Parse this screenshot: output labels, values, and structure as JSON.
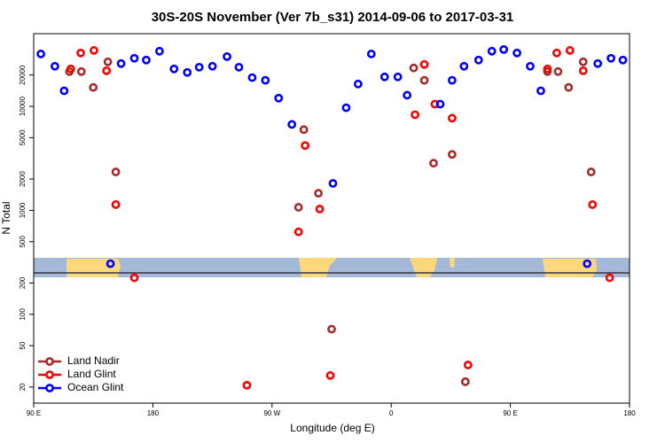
{
  "chart_data": {
    "type": "scatter",
    "title": "30S-20S November (Ver 7b_s31)   2014-09-06 to 2017-03-31",
    "xlabel": "Longitude (deg E)",
    "ylabel": "N Total",
    "log_y": true,
    "legend": "lower left",
    "xlim": [
      90,
      540
    ],
    "xticks": [
      {
        "value": 90,
        "label": "90 E"
      },
      {
        "value": 180,
        "label": "180"
      },
      {
        "value": 270,
        "label": "90 W"
      },
      {
        "value": 360,
        "label": "0"
      },
      {
        "value": 450,
        "label": "90 E"
      },
      {
        "value": 540,
        "label": "180"
      }
    ],
    "ylim": [
      14,
      50000
    ],
    "yticks": [
      20,
      50,
      100,
      200,
      500,
      1000,
      2000,
      5000,
      10000,
      20000
    ],
    "series": [
      {
        "name": "Land Nadir",
        "color": "#a52a2a",
        "x": [
          117,
          126,
          135,
          146,
          152,
          290,
          294,
          305,
          315,
          377,
          385,
          392,
          406,
          416,
          478,
          486,
          494,
          505,
          511
        ],
        "values": [
          21600,
          21600,
          15200,
          26800,
          2340,
          1070,
          5970,
          1460,
          72,
          23400,
          17800,
          2840,
          3450,
          22.5,
          21600,
          21600,
          15200,
          26800,
          2340
        ]
      },
      {
        "name": "Land Glint",
        "color": "#ff0000",
        "x": [
          118,
          125.5,
          135.5,
          145,
          152,
          166,
          251,
          290,
          295,
          306,
          314,
          378,
          385,
          393,
          406,
          418,
          478,
          485,
          495,
          505,
          512,
          525
        ],
        "values": [
          22900,
          32600,
          34500,
          22000,
          1135,
          225,
          20.8,
          621,
          4200,
          1030,
          25.8,
          8310,
          25300,
          10500,
          7690,
          32.6,
          22900,
          32600,
          34500,
          22000,
          1135,
          225
        ]
      },
      {
        "name": "Ocean Glint",
        "color": "#0000ff",
        "x": [
          95.4,
          106,
          113,
          148,
          156,
          166,
          175,
          185,
          196,
          206,
          215,
          225,
          236,
          245,
          255,
          265,
          275,
          285,
          316,
          326,
          335,
          345,
          355,
          365,
          372,
          397,
          406,
          415,
          426,
          436,
          445,
          455,
          465,
          473,
          508,
          516,
          526,
          535
        ],
        "values": [
          31900,
          24300,
          14100,
          307,
          25800,
          29000,
          27900,
          33900,
          22900,
          21200,
          23800,
          24300,
          30100,
          23800,
          18900,
          17800,
          12000,
          6700,
          1815,
          9700,
          16400,
          31900,
          19200,
          19200,
          12800,
          10500,
          17800,
          24300,
          27900,
          33900,
          35200,
          32600,
          24300,
          14100,
          307,
          25800,
          29000,
          27900
        ]
      }
    ]
  }
}
